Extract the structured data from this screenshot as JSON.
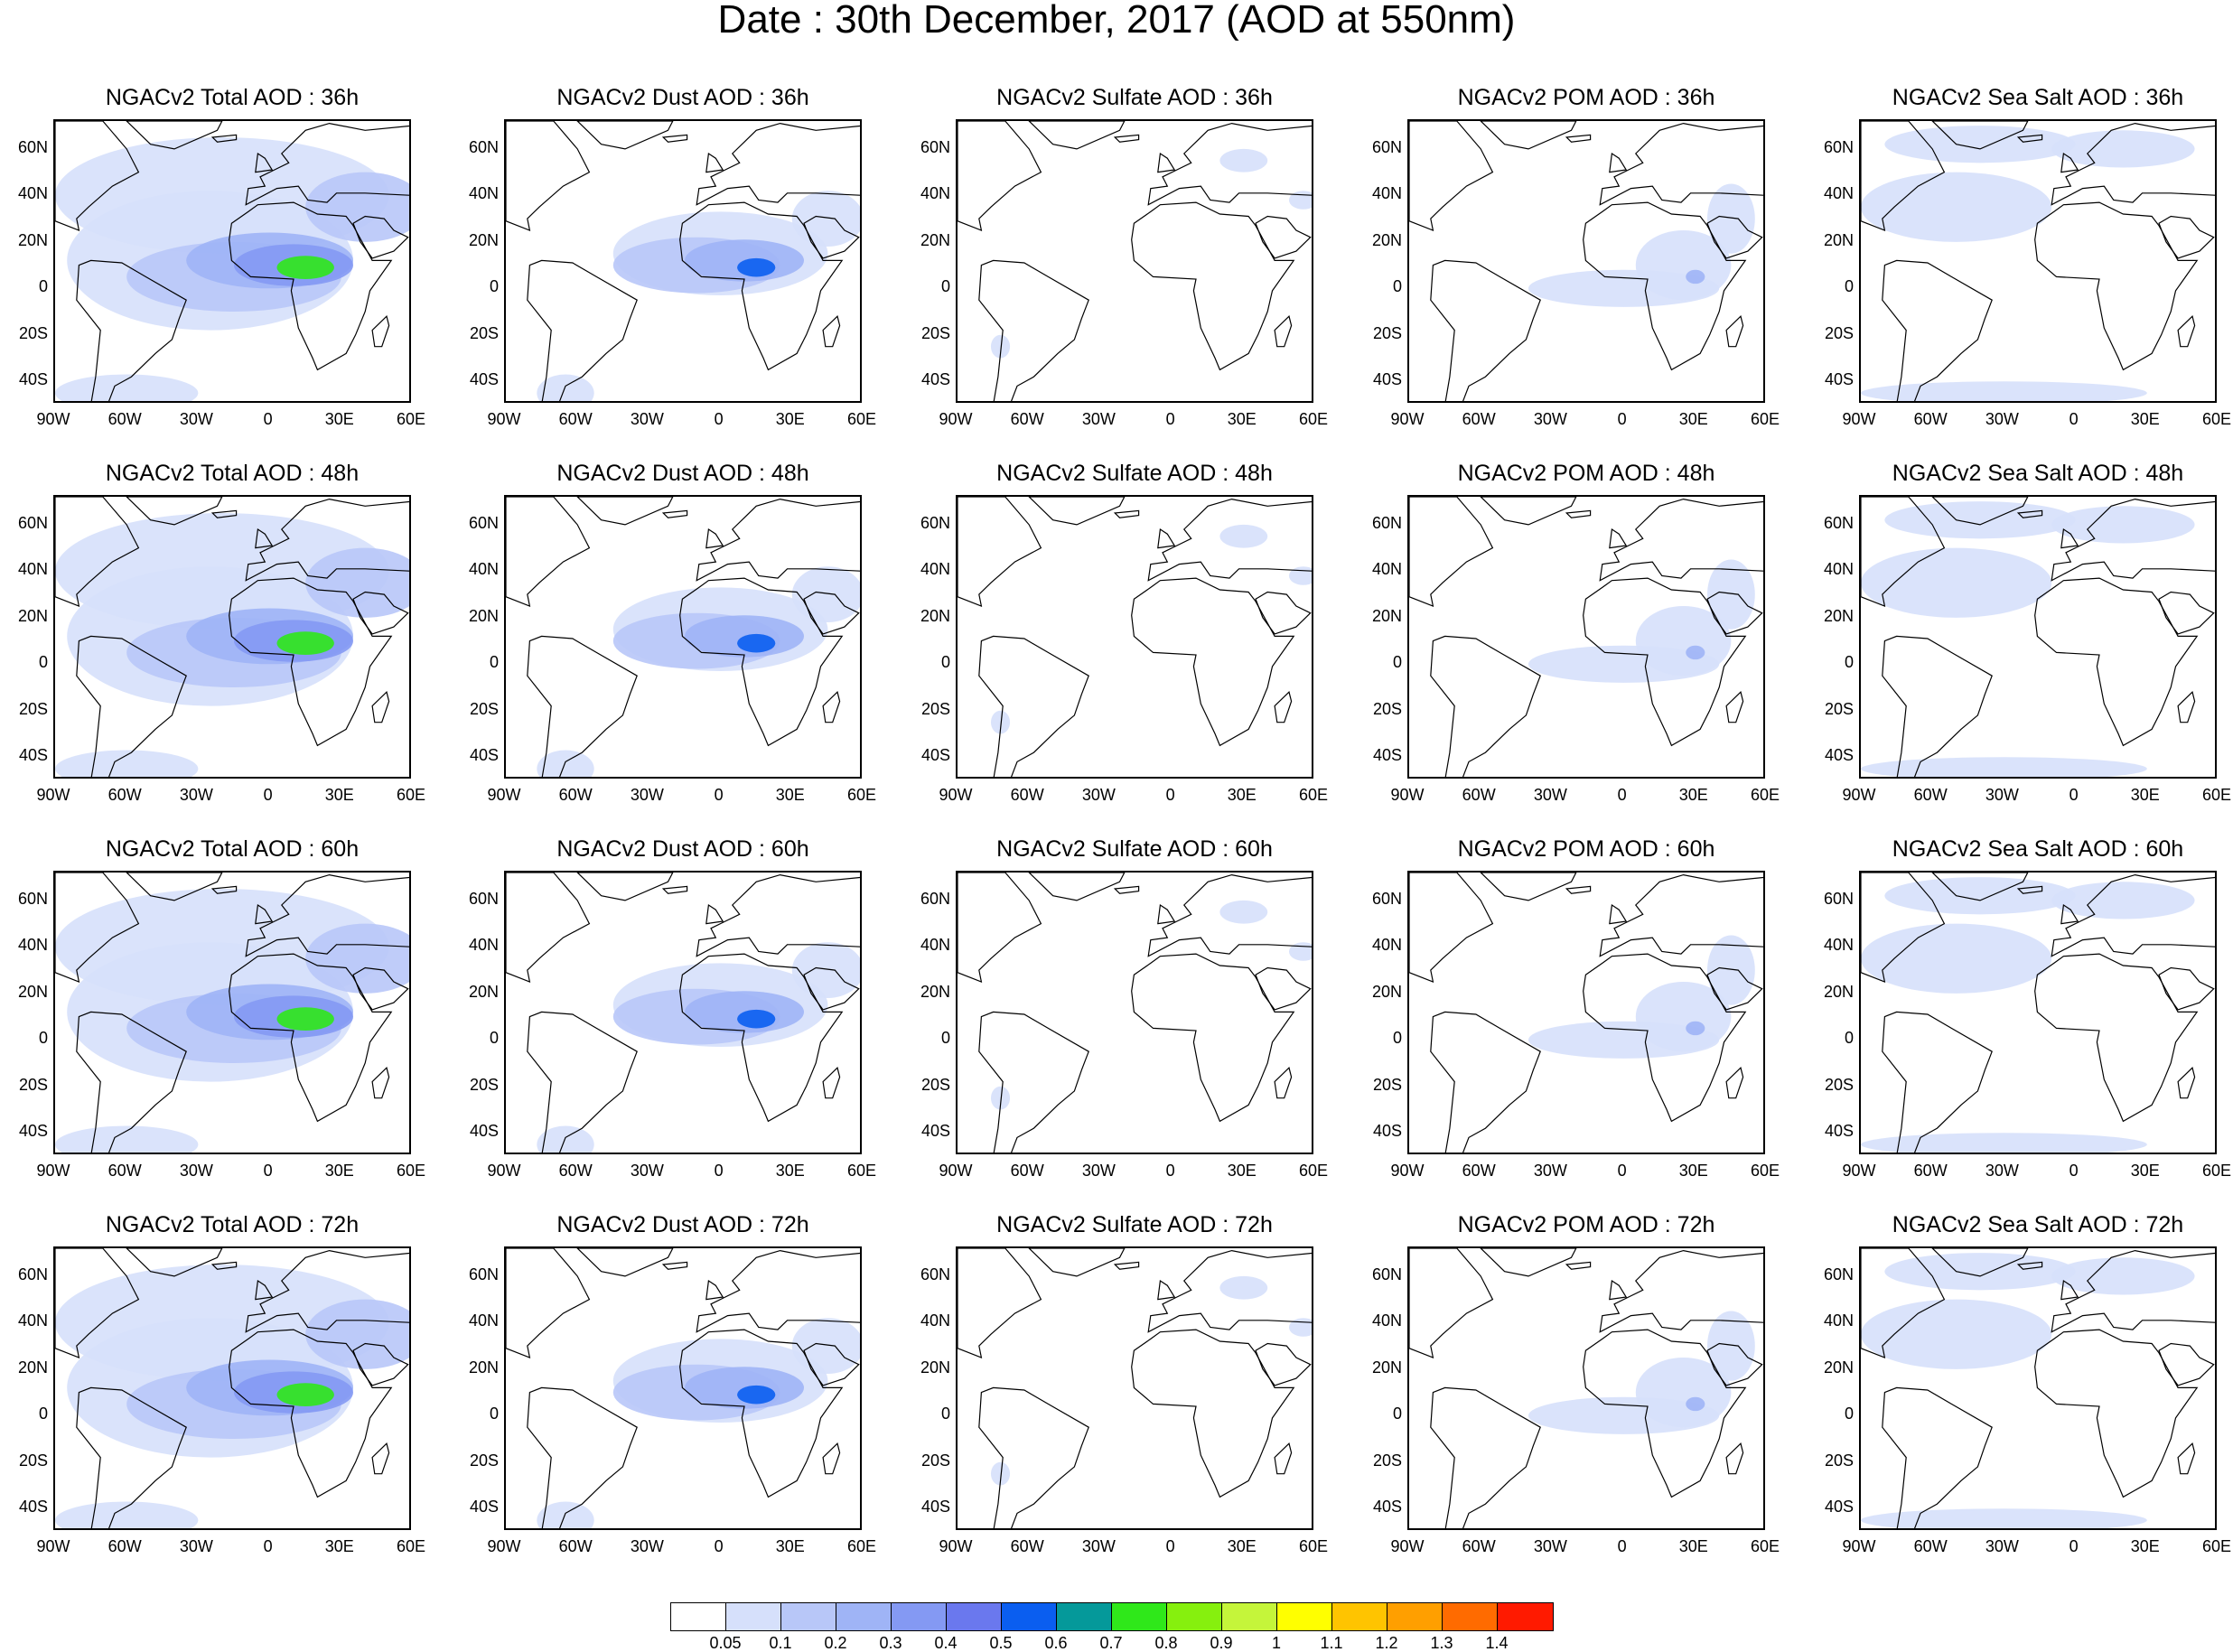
{
  "title": "Date : 30th December, 2017 (AOD at 550nm)",
  "lat_labels": [
    "60N",
    "40N",
    "20N",
    "0",
    "20S",
    "40S"
  ],
  "lon_labels": [
    "90W",
    "60W",
    "30W",
    "0",
    "30E",
    "60E"
  ],
  "rows": [
    {
      "hour": "36h",
      "titles": [
        "NGACv2 Total AOD : 36h",
        "NGACv2 Dust AOD : 36h",
        "NGACv2 Sulfate AOD : 36h",
        "NGACv2 POM AOD : 36h",
        "NGACv2 Sea Salt AOD : 36h"
      ]
    },
    {
      "hour": "48h",
      "titles": [
        "NGACv2 Total AOD : 48h",
        "NGACv2 Dust AOD : 48h",
        "NGACv2 Sulfate AOD : 48h",
        "NGACv2 POM AOD : 48h",
        "NGACv2 Sea Salt AOD : 48h"
      ]
    },
    {
      "hour": "60h",
      "titles": [
        "NGACv2 Total AOD : 60h",
        "NGACv2 Dust AOD : 60h",
        "NGACv2 Sulfate AOD : 60h",
        "NGACv2 POM AOD : 60h",
        "NGACv2 Sea Salt AOD : 60h"
      ]
    },
    {
      "hour": "72h",
      "titles": [
        "NGACv2 Total AOD : 72h",
        "NGACv2 Dust AOD : 72h",
        "NGACv2 Sulfate AOD : 72h",
        "NGACv2 POM AOD : 72h",
        "NGACv2 Sea Salt  AOD : 72h"
      ]
    }
  ],
  "colorbar": {
    "labels": [
      "0.05",
      "0.1",
      "0.2",
      "0.3",
      "0.4",
      "0.5",
      "0.6",
      "0.7",
      "0.8",
      "0.9",
      "1",
      "1.1",
      "1.2",
      "1.3",
      "1.4"
    ],
    "colors": [
      "#ffffff",
      "#d6e0fb",
      "#b8c7f8",
      "#9fb4f6",
      "#8499f3",
      "#6a78ee",
      "#0a5ef0",
      "#05999a",
      "#2fe81a",
      "#86f00e",
      "#c5f53a",
      "#ffff00",
      "#ffc400",
      "#ff9f00",
      "#ff6b00",
      "#ff1a00"
    ]
  }
}
